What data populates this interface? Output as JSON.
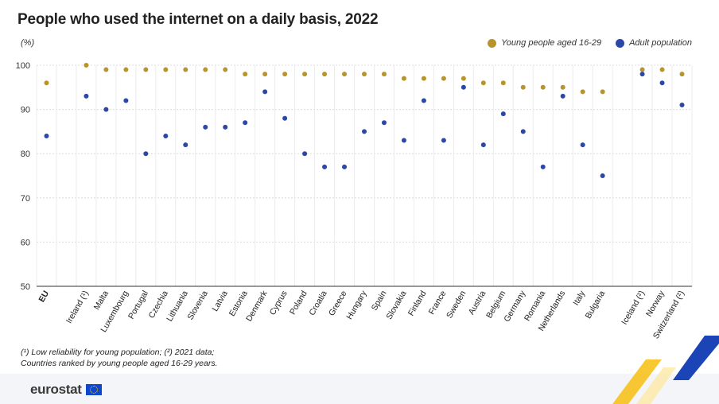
{
  "title": "People who used the internet on a daily basis, 2022",
  "notes": {
    "line1": "(¹) Low reliability for young population; (²) 2021 data;",
    "line2": "Countries ranked by young people aged 16-29 years."
  },
  "logo": {
    "text": "eurostat",
    "icon": "eu-flag-icon"
  },
  "colors": {
    "young": "#b8952b",
    "adult": "#2b47a8",
    "grid": "#dcdcdc",
    "axis": "#333333"
  },
  "chart_data": {
    "type": "scatter",
    "title": "People who used the internet on a daily basis, 2022",
    "unit_label": "(%)",
    "ylim": [
      50,
      100
    ],
    "yticks": [
      50,
      60,
      70,
      80,
      90,
      100
    ],
    "grid": true,
    "legend_position": "top-right",
    "categories": [
      "EU",
      "Ireland (¹)",
      "Malta",
      "Luxembourg",
      "Portugal",
      "Czechia",
      "Lithuania",
      "Slovenia",
      "Latvia",
      "Estonia",
      "Denmark",
      "Cyprus",
      "Poland",
      "Croatia",
      "Greece",
      "Hungary",
      "Spain",
      "Slovakia",
      "Finland",
      "France",
      "Sweden",
      "Austria",
      "Belgium",
      "Germany",
      "Romania",
      "Netherlands",
      "Italy",
      "Bulgaria",
      "Iceland (²)",
      "Norway",
      "Switzerland (²)"
    ],
    "series": [
      {
        "name": "Young people aged 16-29",
        "values": [
          96,
          100,
          99,
          99,
          99,
          99,
          99,
          99,
          99,
          98,
          98,
          98,
          98,
          98,
          98,
          98,
          98,
          97,
          97,
          97,
          97,
          96,
          96,
          95,
          95,
          95,
          94,
          94,
          99,
          99,
          98
        ]
      },
      {
        "name": "Adult population",
        "values": [
          84,
          93,
          90,
          92,
          80,
          84,
          82,
          86,
          86,
          87,
          94,
          88,
          80,
          77,
          77,
          85,
          87,
          83,
          92,
          83,
          95,
          82,
          89,
          85,
          77,
          93,
          82,
          75,
          98,
          96,
          91
        ]
      }
    ]
  }
}
